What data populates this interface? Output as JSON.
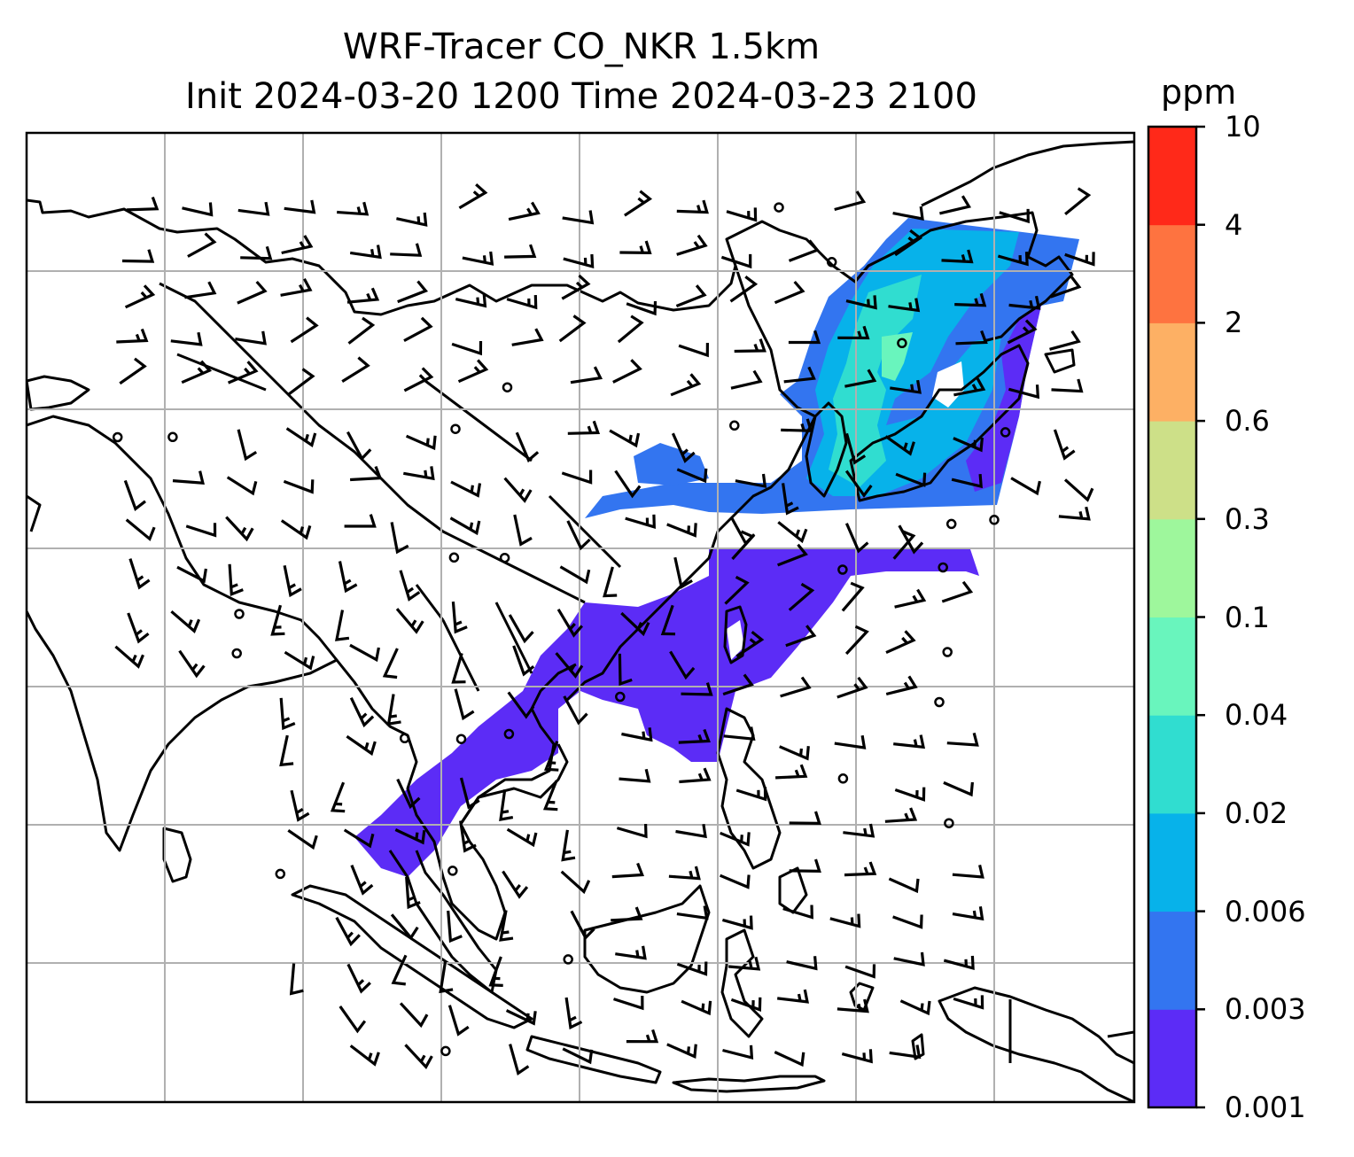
{
  "title": {
    "line1": "WRF-Tracer CO_NKR 1.5km",
    "line2": "Init 2024-03-20 1200 Time 2024-03-23 2100"
  },
  "colorbar": {
    "unit": "ppm",
    "levels": [
      "0.001",
      "0.003",
      "0.006",
      "0.02",
      "0.04",
      "0.1",
      "0.3",
      "0.6",
      "2",
      "4",
      "10"
    ],
    "colors": [
      "#5c2cf6",
      "#3375f0",
      "#07b2ea",
      "#30ddd0",
      "#69f5bd",
      "#9ef79c",
      "#cde088",
      "#fdb064",
      "#fe7340",
      "#ff2919"
    ]
  },
  "map": {
    "gridlines": true,
    "coastline_color": "#000000",
    "grid_color": "#b0b0b0",
    "plume_colors": {
      "low": "#5c2cf6",
      "mid": "#3375f0",
      "high": "#07b2ea",
      "peak": "#30ddd0",
      "max": "#69f5bd"
    },
    "wind_barb_color": "#000000"
  }
}
